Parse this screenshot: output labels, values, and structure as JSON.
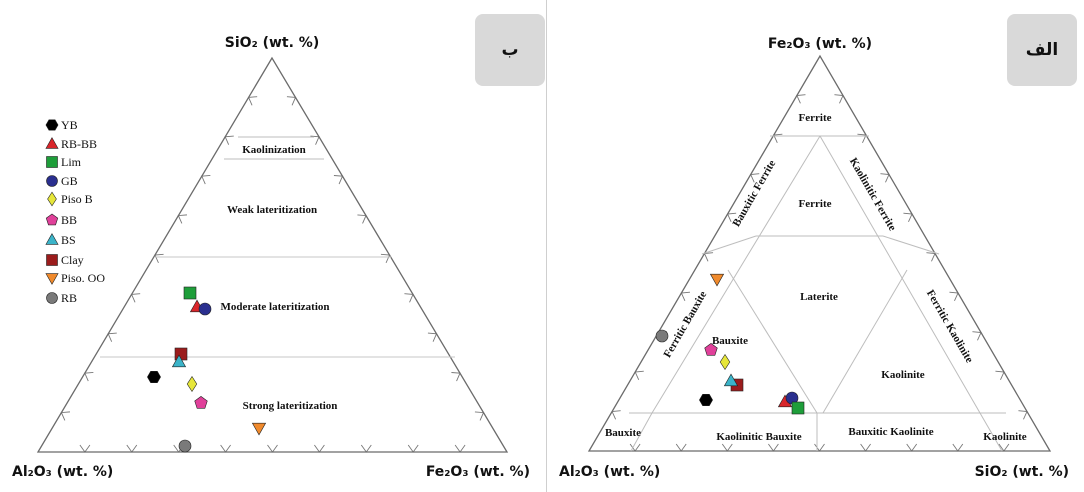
{
  "left": {
    "badge": "ب",
    "axes": {
      "top": "SiO₂ (wt. %)",
      "left": "Al₂O₃ (wt. %)",
      "right": "Fe₂O₃ (wt. %)"
    },
    "zones": [
      "Kaolinization",
      "Weak lateritization",
      "Moderate lateritization",
      "Strong lateritization"
    ],
    "legend": [
      "YB",
      "RB-BB",
      "Lim",
      "GB",
      "Piso B",
      "BB",
      "BS",
      "Clay",
      "Piso. OO",
      "RB"
    ]
  },
  "right": {
    "badge": "الف",
    "axes": {
      "top": "Fe₂O₃ (wt. %)",
      "left": "Al₂O₃ (wt. %)",
      "right": "SiO₂ (wt. %)"
    },
    "zones": {
      "ferrite_top": "Ferrite",
      "ferrite_mid": "Ferrite",
      "bauxitic_ferrite": "Bauxitic Ferrite",
      "kaolinitic_ferrite": "Kaolinitic Ferrite",
      "laterite": "Laterite",
      "ferritic_bauxite": "Ferritic Bauxite",
      "ferritic_kaolinite": "Ferritic Kaolinite",
      "bauxite_inner": "Bauxite",
      "kaolinite_inner": "Kaolinite",
      "bauxite_corner": "Bauxite",
      "kaolinitic_bauxite": "Kaolinitic Bauxite",
      "bauxitic_kaolinite": "Bauxitic Kaolinite",
      "kaolinite_corner": "Kaolinite"
    }
  },
  "symbols": {
    "YB": {
      "shape": "hexagon",
      "color": "#000000"
    },
    "RB-BB": {
      "shape": "triangle",
      "color": "#d9262b"
    },
    "Lim": {
      "shape": "square",
      "color": "#1e9e3a"
    },
    "GB": {
      "shape": "circle",
      "color": "#2a2f8f"
    },
    "Piso B": {
      "shape": "diamond",
      "color": "#e6e63a"
    },
    "BB": {
      "shape": "pentagon",
      "color": "#e0409a"
    },
    "BS": {
      "shape": "triangle",
      "color": "#3bb4c9"
    },
    "Clay": {
      "shape": "square",
      "color": "#9b1c1c"
    },
    "Piso. OO": {
      "shape": "triangle-down",
      "color": "#f08a2c"
    },
    "RB": {
      "shape": "circle",
      "color": "#7a7a7a"
    }
  }
}
